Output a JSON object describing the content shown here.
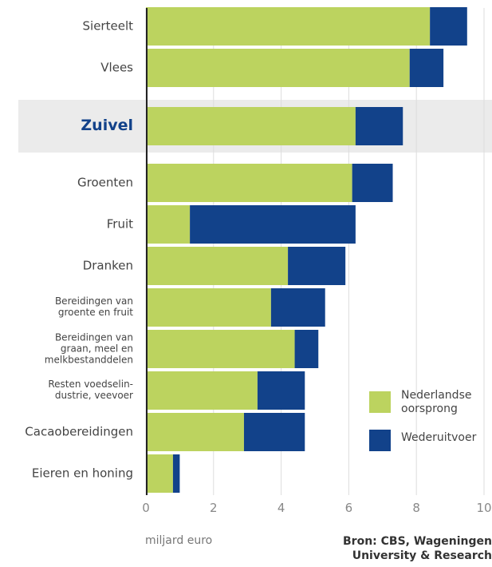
{
  "chart_data": {
    "type": "stacked-barh",
    "categories": [
      "Sierteelt",
      "Vlees",
      "Zuivel",
      "Groenten",
      "Fruit",
      "Dranken",
      "Bereidingen van\ngroente en fruit",
      "Bereidingen van\ngraan, meel en\nmelkbestanddelen",
      "Resten voedselin-\ndustrie, veevoer",
      "Cacaobereidingen",
      "Eieren en honing"
    ],
    "series": [
      {
        "name": "Nederlandse\noorsprong",
        "color": "#bcd35f",
        "values": [
          8.4,
          7.8,
          6.2,
          6.1,
          1.3,
          4.2,
          3.7,
          4.4,
          3.3,
          2.9,
          0.8
        ]
      },
      {
        "name": "Wederuitvoer",
        "color": "#12428a",
        "values": [
          1.1,
          1.0,
          1.4,
          1.2,
          4.9,
          1.7,
          1.6,
          0.7,
          1.4,
          1.8,
          0.2
        ]
      }
    ],
    "highlight": "Zuivel",
    "xlim": [
      0,
      10
    ],
    "xticks": [
      0,
      2,
      4,
      6,
      8,
      10
    ],
    "grid": true,
    "xlabel": "miljard euro",
    "source": "Bron: CBS, Wageningen\nUniversity & Research"
  }
}
